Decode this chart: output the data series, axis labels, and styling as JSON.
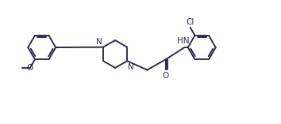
{
  "bg_color": "#ffffff",
  "line_color": "#2d2d4e",
  "line_width": 1.4,
  "font_size": 7.5,
  "figsize": [
    3.54,
    1.57
  ],
  "dpi": 100,
  "xlim": [
    0,
    10.5
  ],
  "ylim": [
    0,
    4.4
  ]
}
